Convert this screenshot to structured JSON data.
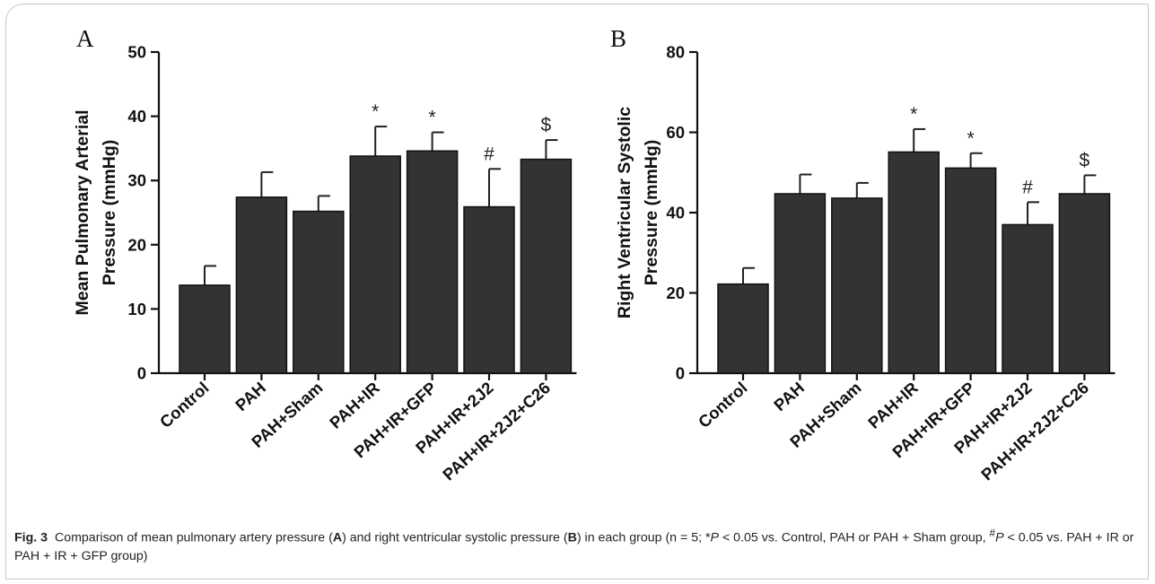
{
  "figure": {
    "caption": {
      "label": "Fig. 3",
      "p1": "Comparison of mean pulmonary artery pressure (",
      "a": "A",
      "p2": ") and right ventricular systolic pressure (",
      "b": "B",
      "p3": ") in each group (n = 5; *",
      "P1": "P",
      "p4": " < 0.05 vs. Control, PAH or PAH + Sham group, ",
      "hash": "#",
      "P2": "P",
      "p5": " < 0.05 vs. PAH + IR or PAH + IR + GFP group)"
    }
  },
  "chart_data": [
    {
      "type": "bar",
      "panel_label": "A",
      "ylabel_line1": "Mean Pulmonary Arterial",
      "ylabel_line2": "Pressure (mmHg)",
      "categories": [
        "Control",
        "PAH",
        "PAH+Sham",
        "PAH+IR",
        "PAH+IR+GFP",
        "PAH+IR+2J2",
        "PAH+IR+2J2+C26"
      ],
      "values": [
        13.7,
        27.4,
        25.2,
        33.8,
        34.6,
        25.9,
        33.3
      ],
      "errors": [
        3.0,
        3.9,
        2.4,
        4.6,
        2.9,
        5.9,
        3.0
      ],
      "annotations": [
        "",
        "",
        "",
        "*",
        "*",
        "#",
        "$"
      ],
      "ylim": [
        0,
        50
      ],
      "yticks": [
        0,
        10,
        20,
        30,
        40,
        50
      ],
      "bar_color": "#333333"
    },
    {
      "type": "bar",
      "panel_label": "B",
      "ylabel_line1": "Right Ventricular Systolic",
      "ylabel_line2": "Pressure (mmHg)",
      "categories": [
        "Control",
        "PAH",
        "PAH+Sham",
        "PAH+IR",
        "PAH+IR+GFP",
        "PAH+IR+2J2",
        "PAH+IR+2J2+C26"
      ],
      "values": [
        22.2,
        44.7,
        43.6,
        55.1,
        51.1,
        37.0,
        44.7
      ],
      "errors": [
        4.0,
        4.8,
        3.8,
        5.7,
        3.7,
        5.6,
        4.6
      ],
      "annotations": [
        "",
        "",
        "",
        "*",
        "*",
        "#",
        "$"
      ],
      "ylim": [
        0,
        80
      ],
      "yticks": [
        0,
        20,
        40,
        60,
        80
      ],
      "bar_color": "#333333"
    }
  ]
}
